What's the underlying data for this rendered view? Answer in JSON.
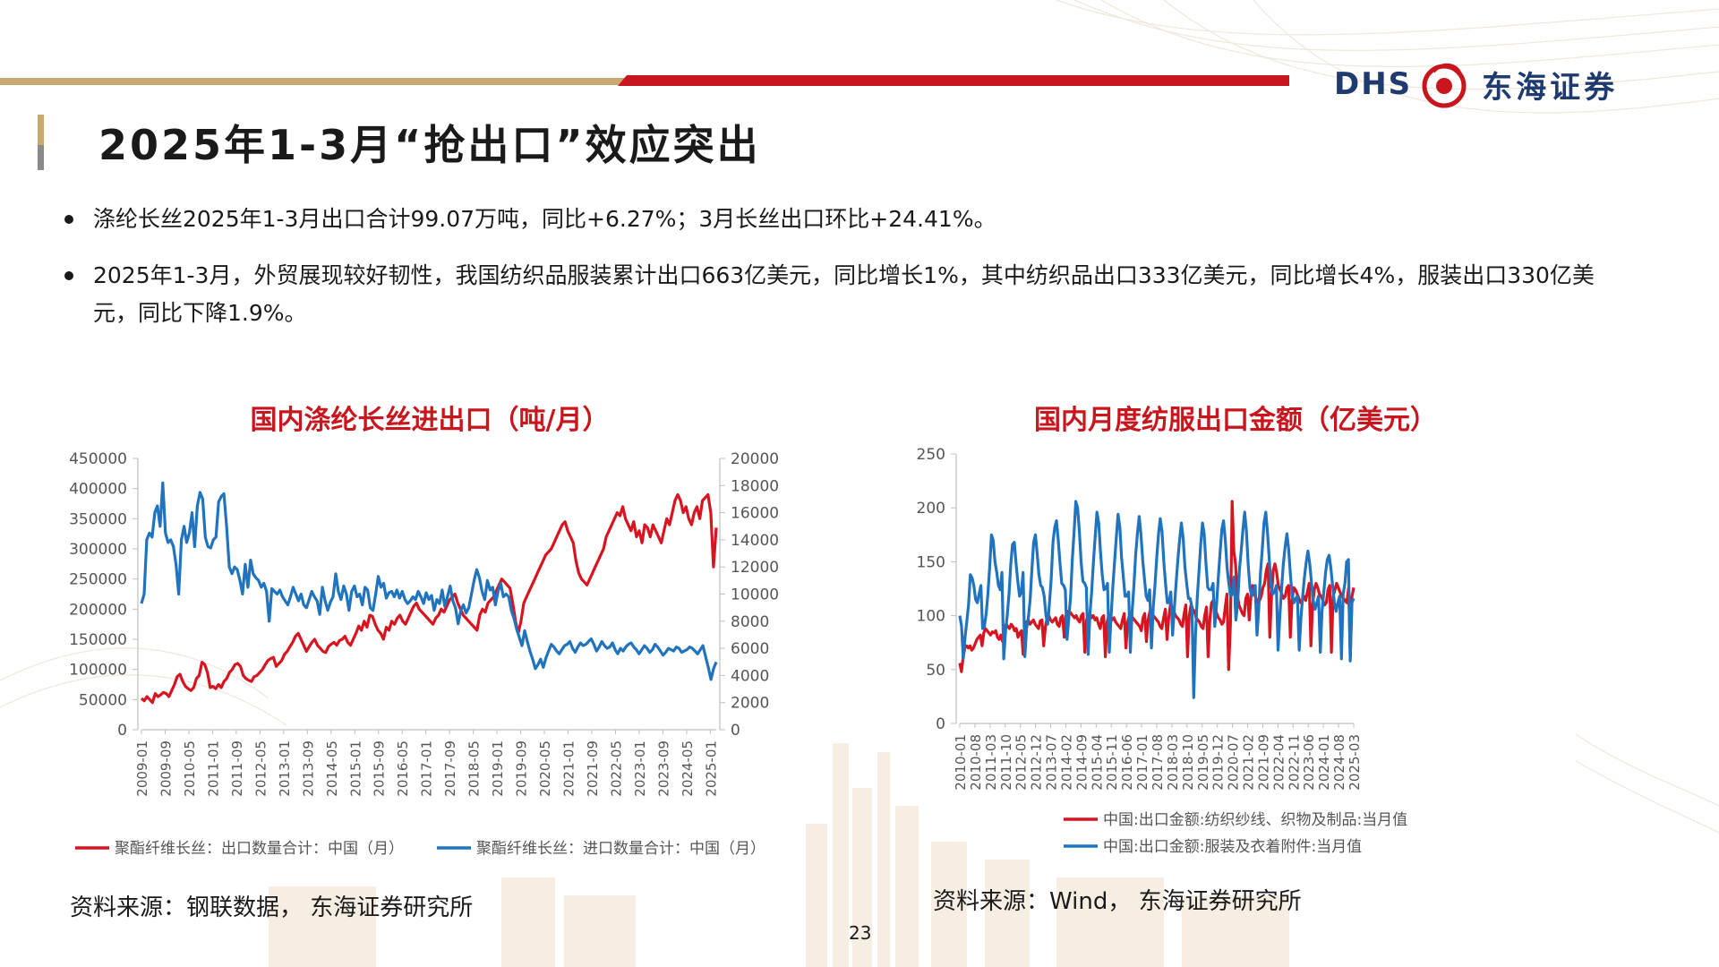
{
  "header": {
    "logo_dhs": "DHS",
    "logo_cn": "东海证券"
  },
  "slide": {
    "title": "2025年1-3月“抢出口”效应突出",
    "bullets": [
      "涤纶长丝2025年1-3月出口合计99.07万吨，同比+6.27%；3月长丝出口环比+24.41%。",
      "2025年1-3月，外贸展现较好韧性，我国纺织品服装累计出口663亿美元，同比增长1%，其中纺织品出口333亿美元，同比增长4%，服装出口330亿美元，同比下降1.9%。"
    ],
    "page_number": "23"
  },
  "colors": {
    "red": "#d7141f",
    "blue": "#1f73bf",
    "accent": "#c8161e",
    "gold": "#c9a872",
    "brand": "#1e3a6e"
  },
  "chart_data": [
    {
      "type": "line",
      "title": "国内涤纶长丝进出口（吨/月）",
      "source": "资料来源：钢联数据， 东海证券研究所",
      "left_ylim": [
        0,
        450000
      ],
      "left_yticks": [
        "0",
        "50000",
        "100000",
        "150000",
        "200000",
        "250000",
        "300000",
        "350000",
        "400000",
        "450000"
      ],
      "right_ylim": [
        0,
        20000
      ],
      "right_yticks": [
        "0",
        "2000",
        "4000",
        "6000",
        "8000",
        "10000",
        "12000",
        "14000",
        "16000",
        "18000",
        "20000"
      ],
      "x_start": "2009-01",
      "x_end": "2025-03",
      "xticks": [
        "2009-01",
        "2009-09",
        "2010-05",
        "2011-01",
        "2011-09",
        "2012-05",
        "2013-01",
        "2013-09",
        "2014-05",
        "2015-01",
        "2015-09",
        "2016-05",
        "2017-01",
        "2017-09",
        "2018-05",
        "2019-01",
        "2019-09",
        "2020-05",
        "2021-01",
        "2021-09",
        "2022-05",
        "2023-01",
        "2023-09",
        "2024-05",
        "2025-01"
      ],
      "series": [
        {
          "name": "聚酯纤维长丝：出口数量合计：中国（月）",
          "axis": "left",
          "color": "#d7141f",
          "values": [
            52000,
            48000,
            55000,
            50000,
            45000,
            60000,
            55000,
            58000,
            62000,
            60000,
            55000,
            65000,
            75000,
            88000,
            92000,
            80000,
            72000,
            68000,
            65000,
            70000,
            85000,
            90000,
            112000,
            108000,
            95000,
            70000,
            72000,
            68000,
            75000,
            70000,
            80000,
            85000,
            95000,
            100000,
            108000,
            110000,
            105000,
            90000,
            85000,
            82000,
            80000,
            88000,
            90000,
            95000,
            100000,
            108000,
            115000,
            118000,
            120000,
            105000,
            110000,
            115000,
            125000,
            130000,
            138000,
            145000,
            155000,
            160000,
            150000,
            140000,
            130000,
            138000,
            145000,
            150000,
            140000,
            135000,
            130000,
            128000,
            138000,
            142000,
            145000,
            140000,
            148000,
            150000,
            155000,
            145000,
            140000,
            150000,
            160000,
            172000,
            165000,
            180000,
            170000,
            190000,
            188000,
            175000,
            165000,
            160000,
            150000,
            170000,
            165000,
            180000,
            175000,
            185000,
            190000,
            180000,
            175000,
            185000,
            195000,
            205000,
            210000,
            200000,
            195000,
            190000,
            185000,
            180000,
            175000,
            185000,
            190000,
            200000,
            195000,
            205000,
            215000,
            220000,
            225000,
            210000,
            200000,
            190000,
            185000,
            180000,
            175000,
            170000,
            165000,
            190000,
            200000,
            195000,
            210000,
            215000,
            220000,
            230000,
            240000,
            250000,
            245000,
            240000,
            235000,
            210000,
            180000,
            160000,
            180000,
            210000,
            220000,
            230000,
            240000,
            250000,
            260000,
            270000,
            280000,
            290000,
            295000,
            300000,
            310000,
            320000,
            330000,
            340000,
            345000,
            330000,
            320000,
            310000,
            280000,
            260000,
            250000,
            245000,
            240000,
            250000,
            260000,
            270000,
            280000,
            290000,
            300000,
            320000,
            330000,
            340000,
            350000,
            360000,
            355000,
            370000,
            350000,
            340000,
            330000,
            345000,
            320000,
            330000,
            310000,
            340000,
            335000,
            320000,
            340000,
            330000,
            320000,
            310000,
            330000,
            350000,
            340000,
            360000,
            380000,
            390000,
            380000,
            360000,
            370000,
            350000,
            340000,
            360000,
            370000,
            350000,
            380000,
            385000,
            390000,
            360000,
            270000,
            335000
          ]
        },
        {
          "name": "聚酯纤维长丝：进口数量合计：中国（月）",
          "axis": "right",
          "color": "#1f73bf",
          "values": [
            9300,
            10000,
            14000,
            14500,
            14200,
            16000,
            16500,
            15000,
            18200,
            14500,
            13800,
            14000,
            13500,
            12200,
            10000,
            14000,
            15000,
            13800,
            14500,
            16000,
            13500,
            16500,
            17500,
            17000,
            14200,
            13500,
            13400,
            14000,
            14200,
            16800,
            17200,
            17400,
            15000,
            12000,
            11500,
            12000,
            11800,
            11000,
            10000,
            12200,
            10500,
            12500,
            11500,
            11200,
            11000,
            10500,
            10800,
            10200,
            8000,
            10400,
            10200,
            10000,
            10300,
            9800,
            9500,
            9200,
            9800,
            10500,
            10000,
            9500,
            10000,
            9200,
            9000,
            9600,
            10200,
            9800,
            9500,
            8500,
            10500,
            9500,
            8800,
            9400,
            9800,
            11500,
            10200,
            9600,
            10600,
            10000,
            8800,
            10200,
            10600,
            9800,
            10000,
            9200,
            10500,
            10300,
            9000,
            8800,
            10000,
            11300,
            10500,
            10800,
            9700,
            10100,
            10200,
            9800,
            10300,
            9700,
            10200,
            9600,
            9300,
            9500,
            9800,
            9600,
            10200,
            9800,
            9300,
            10100,
            9600,
            9900,
            8800,
            9600,
            9300,
            10300,
            9100,
            9800,
            10600,
            9500,
            9000,
            7800,
            8800,
            9200,
            8600,
            9000,
            10000,
            11000,
            11800,
            11200,
            10200,
            9600,
            11000,
            10300,
            10500,
            9200,
            10200,
            10800,
            9800,
            10000,
            9800,
            8800,
            8200,
            7400,
            6800,
            6200,
            7300,
            6500,
            5800,
            5200,
            4500,
            4800,
            5200,
            4600,
            5300,
            5800,
            6300,
            6100,
            5800,
            5600,
            5900,
            6200,
            6300,
            6500,
            6000,
            5700,
            6100,
            6400,
            6200,
            6300,
            6500,
            6700,
            6300,
            5800,
            6100,
            6500,
            6200,
            6000,
            6100,
            6400,
            5900,
            5600,
            6000,
            5800,
            6100,
            6300,
            6400,
            6100,
            5900,
            5600,
            5900,
            6200,
            6000,
            5700,
            5900,
            6300,
            6100,
            5800,
            5500,
            5700,
            6000,
            5900,
            5800,
            6100,
            6000,
            5700,
            5800,
            5900,
            6100,
            6000,
            5800,
            5600,
            5900,
            6200,
            5400,
            4600,
            3700,
            4500,
            5000
          ]
        }
      ]
    },
    {
      "type": "line",
      "title": "国内月度纺服出口金额（亿美元）",
      "source": "资料来源：Wind， 东海证券研究所",
      "ylim": [
        0,
        250
      ],
      "yticks": [
        "0",
        "50",
        "100",
        "150",
        "200",
        "250"
      ],
      "x_start": "2010-01",
      "x_end": "2025-03",
      "xticks": [
        "2010-01",
        "2010-08",
        "2011-03",
        "2011-10",
        "2012-05",
        "2012-12",
        "2013-07",
        "2014-02",
        "2014-09",
        "2015-04",
        "2015-11",
        "2016-06",
        "2017-01",
        "2017-08",
        "2018-03",
        "2018-10",
        "2019-05",
        "2019-12",
        "2020-07",
        "2021-02",
        "2021-09",
        "2022-04",
        "2022-11",
        "2023-06",
        "2024-01",
        "2024-08",
        "2025-03"
      ],
      "series": [
        {
          "name": "中国:出口金额:纺织纱线、织物及制品:当月值",
          "color": "#d7141f",
          "values": [
            56,
            48,
            62,
            70,
            72,
            70,
            72,
            68,
            70,
            74,
            78,
            80,
            82,
            72,
            84,
            88,
            86,
            84,
            82,
            85,
            84,
            86,
            80,
            78,
            82,
            76,
            84,
            92,
            90,
            88,
            92,
            90,
            86,
            88,
            80,
            84,
            86,
            64,
            88,
            94,
            96,
            92,
            94,
            96,
            92,
            90,
            88,
            95,
            96,
            72,
            90,
            98,
            100,
            96,
            94,
            96,
            98,
            92,
            90,
            98,
            100,
            80,
            100,
            104,
            104,
            102,
            100,
            98,
            100,
            96,
            94,
            100,
            102,
            66,
            96,
            100,
            102,
            98,
            100,
            96,
            98,
            92,
            88,
            98,
            100,
            62,
            94,
            100,
            100,
            96,
            98,
            94,
            92,
            90,
            88,
            96,
            102,
            70,
            94,
            100,
            100,
            98,
            96,
            94,
            92,
            90,
            86,
            98,
            102,
            76,
            96,
            104,
            102,
            100,
            98,
            96,
            94,
            90,
            88,
            98,
            106,
            78,
            98,
            110,
            108,
            104,
            100,
            98,
            96,
            92,
            90,
            102,
            110,
            62,
            100,
            110,
            106,
            104,
            98,
            96,
            94,
            90,
            88,
            100,
            108,
            62,
            96,
            112,
            114,
            108,
            102,
            98,
            96,
            92,
            94,
            108,
            120,
            50,
            92,
            206,
            160,
            148,
            120,
            110,
            106,
            102,
            100,
            116,
            120,
            96,
            118,
            128,
            120,
            116,
            112,
            114,
            118,
            126,
            130,
            142,
            148,
            80,
            118,
            142,
            148,
            140,
            128,
            124,
            120,
            116,
            118,
            126,
            128,
            80,
            114,
            126,
            124,
            120,
            116,
            112,
            114,
            118,
            114,
            122,
            130,
            72,
            110,
            124,
            130,
            126,
            120,
            118,
            114,
            110,
            112,
            124,
            128,
            66,
            118,
            124,
            130,
            126,
            122,
            118,
            116,
            114,
            112,
            126,
            62,
            118,
            126
          ]
        },
        {
          "name": "中国:出口金额:服装及衣着附件:当月值",
          "color": "#1f73bf",
          "values": [
            100,
            90,
            60,
            80,
            95,
            110,
            138,
            135,
            128,
            115,
            112,
            120,
            128,
            88,
            90,
            102,
            120,
            145,
            175,
            170,
            150,
            140,
            128,
            124,
            140,
            60,
            85,
            100,
            120,
            148,
            166,
            168,
            148,
            132,
            118,
            122,
            140,
            62,
            88,
            98,
            115,
            142,
            168,
            175,
            158,
            138,
            128,
            126,
            118,
            100,
            92,
            112,
            134,
            168,
            182,
            188,
            170,
            148,
            130,
            128,
            124,
            78,
            98,
            118,
            152,
            178,
            206,
            200,
            178,
            150,
            132,
            130,
            126,
            64,
            102,
            122,
            150,
            174,
            196,
            186,
            160,
            138,
            124,
            125,
            130,
            66,
            98,
            126,
            150,
            172,
            194,
            182,
            154,
            136,
            118,
            118,
            122,
            66,
            104,
            128,
            156,
            176,
            192,
            176,
            152,
            134,
            118,
            114,
            124,
            70,
            108,
            128,
            154,
            176,
            190,
            178,
            150,
            130,
            112,
            112,
            122,
            82,
            106,
            130,
            152,
            170,
            186,
            172,
            146,
            130,
            116,
            116,
            108,
            24,
            80,
            116,
            140,
            166,
            186,
            176,
            148,
            126,
            124,
            124,
            130,
            90,
            110,
            136,
            158,
            180,
            188,
            170,
            144,
            130,
            118,
            120,
            136,
            96,
            112,
            142,
            160,
            180,
            196,
            178,
            148,
            126,
            118,
            124,
            128,
            82,
            106,
            140,
            162,
            186,
            196,
            176,
            152,
            128,
            120,
            122,
            128,
            68,
            100,
            126,
            148,
            164,
            176,
            162,
            138,
            118,
            112,
            116,
            118,
            68,
            98,
            118,
            136,
            150,
            160,
            148,
            130,
            114,
            106,
            112,
            118,
            66,
            104,
            122,
            140,
            152,
            156,
            144,
            128,
            112,
            104,
            112,
            118,
            60,
            120,
            130,
            150,
            152,
            58,
            112,
            116
          ]
        }
      ]
    }
  ]
}
